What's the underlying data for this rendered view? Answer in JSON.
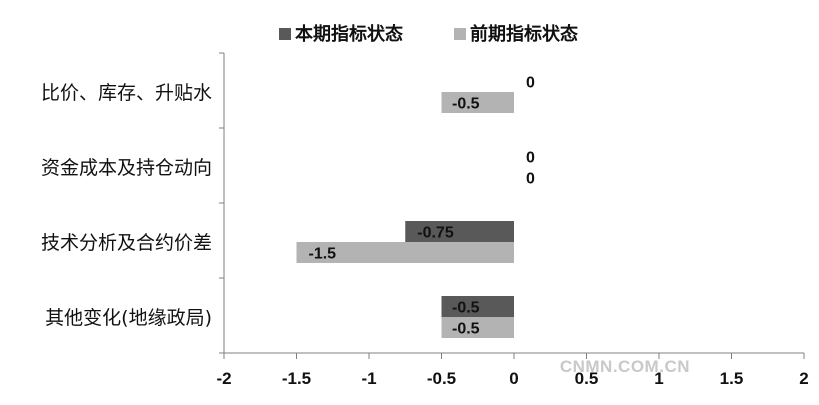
{
  "chart_data": {
    "type": "bar",
    "orientation": "horizontal",
    "categories": [
      "比价、库存、升贴水",
      "资金成本及持仓动向",
      "技术分析及合约价差",
      "其他变化(地缘政局)"
    ],
    "series": [
      {
        "name": "本期指标状态",
        "values": [
          0,
          0,
          -0.75,
          -0.5
        ],
        "color": "#595959"
      },
      {
        "name": "前期指标状态",
        "values": [
          -0.5,
          0,
          -1.5,
          -0.5
        ],
        "color": "#b3b3b3"
      }
    ],
    "data_labels": [
      [
        "0",
        "-0.5"
      ],
      [
        "0",
        "0"
      ],
      [
        "-0.75",
        "-1.5"
      ],
      [
        "-0.5",
        "-0.5"
      ]
    ],
    "xlim": [
      -2,
      2
    ],
    "x_ticks": [
      -2,
      -1.5,
      -1,
      -0.5,
      0,
      0.5,
      1,
      1.5,
      2
    ],
    "x_tick_labels": [
      "-2",
      "-1.5",
      "-1",
      "-0.5",
      "0",
      "0.5",
      "1",
      "1.5",
      "2"
    ],
    "legend_position": "top",
    "grid": false
  },
  "watermark": "CNMN.COM.CN"
}
